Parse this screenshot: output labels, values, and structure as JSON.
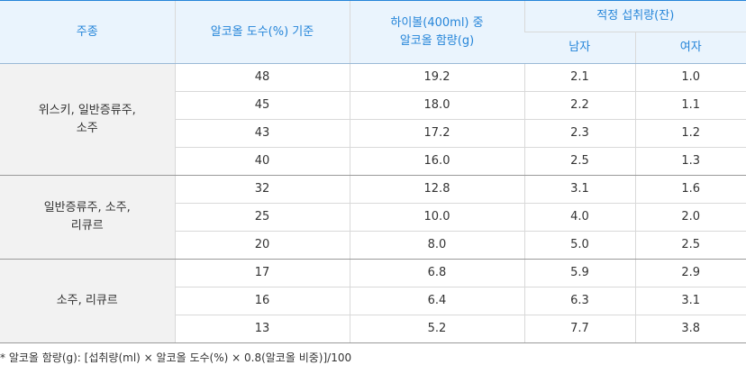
{
  "table": {
    "headers": {
      "kind": "주종",
      "abv": "알코올 도수(%) 기준",
      "content_line1": "하이볼(400ml) 중",
      "content_line2": "알코올 함량(g)",
      "intake": "적정 섭취량(잔)",
      "male": "남자",
      "female": "여자"
    },
    "groups": [
      {
        "kind_line1": "위스키, 일반증류주,",
        "kind_line2": "소주",
        "rows": [
          {
            "abv": "48",
            "content": "19.2",
            "male": "2.1",
            "female": "1.0"
          },
          {
            "abv": "45",
            "content": "18.0",
            "male": "2.2",
            "female": "1.1"
          },
          {
            "abv": "43",
            "content": "17.2",
            "male": "2.3",
            "female": "1.2"
          },
          {
            "abv": "40",
            "content": "16.0",
            "male": "2.5",
            "female": "1.3"
          }
        ]
      },
      {
        "kind_line1": "일반증류주, 소주,",
        "kind_line2": "리큐르",
        "rows": [
          {
            "abv": "32",
            "content": "12.8",
            "male": "3.1",
            "female": "1.6"
          },
          {
            "abv": "25",
            "content": "10.0",
            "male": "4.0",
            "female": "2.0"
          },
          {
            "abv": "20",
            "content": "8.0",
            "male": "5.0",
            "female": "2.5"
          }
        ]
      },
      {
        "kind_line1": "소주, 리큐르",
        "kind_line2": "",
        "rows": [
          {
            "abv": "17",
            "content": "6.8",
            "male": "5.9",
            "female": "2.9"
          },
          {
            "abv": "16",
            "content": "6.4",
            "male": "6.3",
            "female": "3.1"
          },
          {
            "abv": "13",
            "content": "5.2",
            "male": "7.7",
            "female": "3.8"
          }
        ]
      }
    ]
  },
  "footnote": "* 알코올 함량(g): [섭취량(ml) × 알코올 도수(%) × 0.8(알코올 비중)]/100",
  "colors": {
    "header_bg": "#eaf4fd",
    "header_text": "#2585d9",
    "kind_bg": "#f2f2f2"
  }
}
